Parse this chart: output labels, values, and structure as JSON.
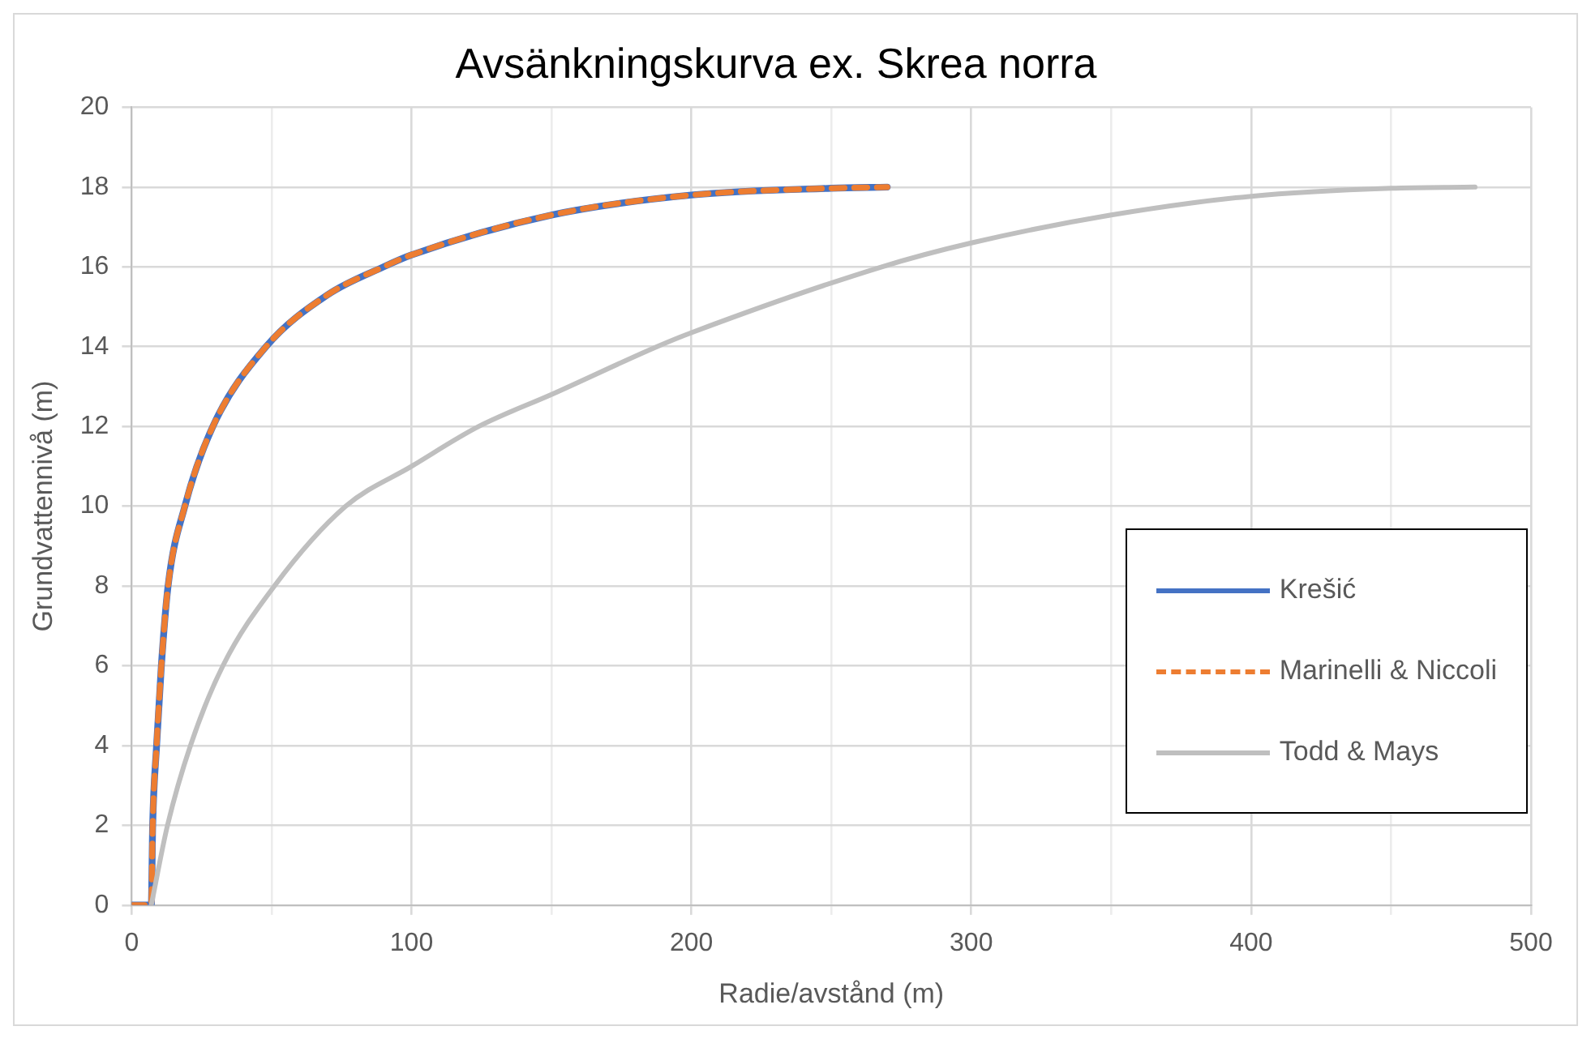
{
  "chart_data": {
    "type": "line",
    "title": "Avsänkningskurva ex. Skrea norra",
    "xlabel": "Radie/avstånd (m)",
    "ylabel": "Grundvattennivå (m)",
    "xlim": [
      0,
      500
    ],
    "xticks": [
      0,
      {
        "value": 50,
        "label": null
      },
      100,
      {
        "value": 150,
        "label": null
      },
      200,
      {
        "value": 250,
        "label": null
      },
      300,
      {
        "value": 350,
        "label": null
      },
      400,
      {
        "value": 450,
        "label": null
      },
      500
    ],
    "ylim": [
      0,
      20
    ],
    "yticks": [
      0,
      2,
      4,
      6,
      8,
      10,
      12,
      14,
      16,
      18,
      20
    ],
    "grid": true,
    "legend": "bottom right",
    "marker": "none",
    "series": [
      {
        "name": "Krešić",
        "color": "#4472c4",
        "line_style": "solid",
        "x": [
          0,
          7,
          7.5,
          8.9,
          10.6,
          13,
          19,
          29,
          48,
          70,
          90,
          100,
          150,
          200,
          250,
          270
        ],
        "values": [
          0,
          0,
          2,
          4,
          6,
          8,
          10,
          12,
          14,
          15.3,
          16,
          16.3,
          17.3,
          17.8,
          17.97,
          18
        ]
      },
      {
        "name": "Marinelli & Niccoli",
        "color": "#ed7d31",
        "line_style": "dashed",
        "x": [
          0,
          7,
          7.5,
          8.9,
          10.6,
          13,
          19,
          29,
          48,
          70,
          90,
          100,
          150,
          200,
          250,
          270
        ],
        "values": [
          0,
          0,
          2,
          4,
          6,
          8,
          10,
          12,
          14,
          15.3,
          16,
          16.3,
          17.3,
          17.8,
          17.97,
          18
        ]
      },
      {
        "name": "Todd & Mays",
        "color": "#bfbfbf",
        "line_style": "solid",
        "x": [
          7,
          12.8,
          21,
          32.6,
          51,
          76.5,
          100,
          124,
          150,
          187.7,
          200,
          268,
          300,
          350,
          400,
          450,
          480
        ],
        "values": [
          0,
          2,
          4,
          6,
          8,
          10,
          11,
          12,
          12.8,
          14,
          14.35,
          16,
          16.6,
          17.3,
          17.77,
          17.97,
          18
        ]
      }
    ]
  }
}
